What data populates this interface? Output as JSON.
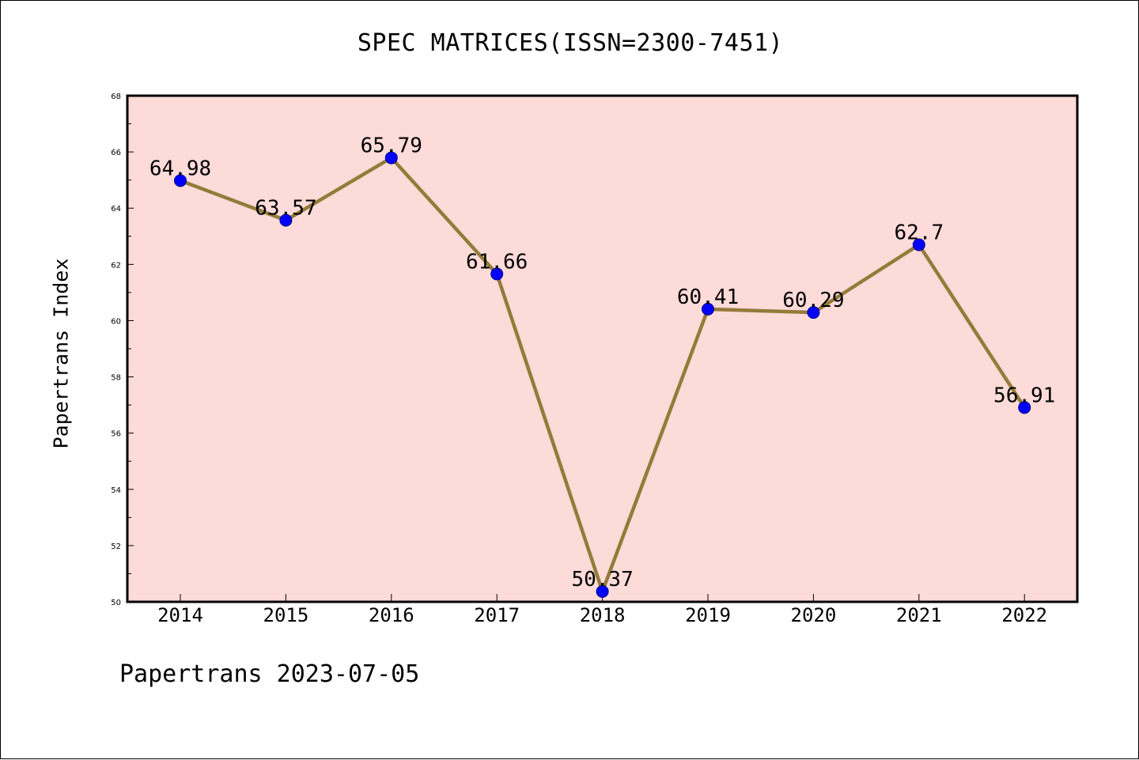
{
  "chart_data": {
    "type": "line",
    "title": "SPEC MATRICES(ISSN=2300-7451)",
    "xlabel": "",
    "ylabel": "Papertrans Index",
    "footer": "Papertrans 2023-07-05",
    "categories": [
      "2014",
      "2015",
      "2016",
      "2017",
      "2018",
      "2019",
      "2020",
      "2021",
      "2022"
    ],
    "values": [
      64.98,
      63.57,
      65.79,
      61.66,
      50.37,
      60.41,
      60.29,
      62.7,
      56.91
    ],
    "value_labels": [
      "64.98",
      "63.57",
      "65.79",
      "61.66",
      "50.37",
      "60.41",
      "60.29",
      "62.7",
      "56.91"
    ],
    "ylim": [
      50,
      68
    ],
    "yticks": [
      50,
      52,
      54,
      56,
      58,
      60,
      62,
      64,
      66,
      68
    ],
    "grid": false,
    "legend": "none",
    "colors": {
      "plot_background": "#fddbd9",
      "line": "#947b39",
      "marker": "#0000ff",
      "axes": "#000000"
    }
  }
}
